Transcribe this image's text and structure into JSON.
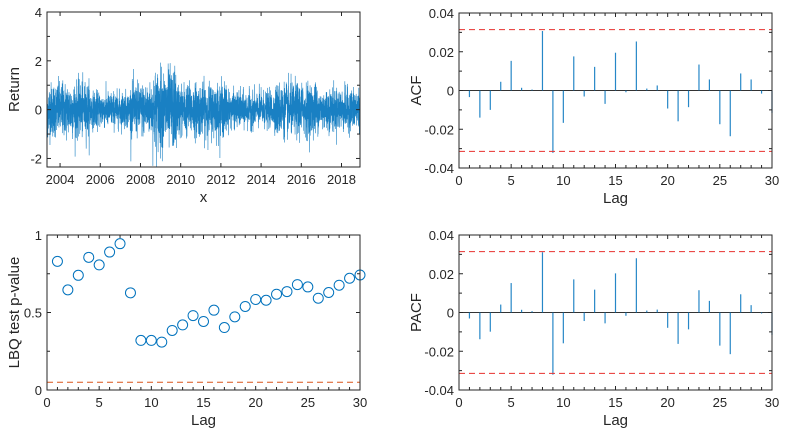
{
  "colors": {
    "series": "#0072BD",
    "bound": "#E8312F",
    "lbq_line": "#D95319",
    "axis": "#262626"
  },
  "chart_data": [
    {
      "id": "returns",
      "type": "line",
      "title": "",
      "xlabel": "x",
      "ylabel": "Return",
      "xlim": [
        2003.35,
        2018.92
      ],
      "ylim": [
        -2.35,
        4
      ],
      "xticks": [
        2004,
        2006,
        2008,
        2010,
        2012,
        2014,
        2016,
        2018
      ],
      "xtick_labels": [
        "2004",
        "2006",
        "2008",
        "2010",
        "2012",
        "2014",
        "2016",
        "2018"
      ],
      "yticks": [
        -2,
        0,
        2,
        4
      ],
      "ytick_labels": [
        "-2",
        "0",
        "2",
        "4"
      ],
      "grid": false
    },
    {
      "id": "acf",
      "type": "stem",
      "xlabel": "Lag",
      "ylabel": "ACF",
      "xlim": [
        0,
        30
      ],
      "ylim": [
        -0.04,
        0.04
      ],
      "xticks": [
        0,
        5,
        10,
        15,
        20,
        25,
        30
      ],
      "xtick_labels": [
        "0",
        "5",
        "10",
        "15",
        "20",
        "25",
        "30"
      ],
      "yticks": [
        -0.04,
        -0.02,
        0,
        0.02,
        0.04
      ],
      "ytick_labels": [
        "-0.04",
        "-0.02",
        "0",
        "0.02",
        "0.04"
      ],
      "lags": [
        1,
        2,
        3,
        4,
        5,
        6,
        7,
        8,
        9,
        10,
        11,
        12,
        13,
        14,
        15,
        16,
        17,
        18,
        19,
        20,
        21,
        22,
        23,
        24,
        25,
        26,
        27,
        28,
        29,
        30
      ],
      "values": [
        -0.0034,
        -0.014,
        -0.01,
        0.0045,
        0.0153,
        0.0014,
        0.0005,
        0.0307,
        -0.0322,
        -0.0167,
        0.0176,
        -0.0031,
        0.0122,
        -0.0069,
        0.0195,
        -0.0009,
        0.0253,
        0.001,
        0.0026,
        -0.0093,
        -0.0159,
        -0.0086,
        0.0134,
        0.0057,
        -0.0174,
        -0.0236,
        0.0088,
        0.0057,
        -0.0016,
        -0.0116
      ],
      "confidence_bound": 0.0314,
      "grid": false
    },
    {
      "id": "lbq",
      "type": "scatter",
      "xlabel": "Lag",
      "ylabel": "LBQ test p-value",
      "xlim": [
        0,
        30
      ],
      "ylim": [
        0,
        1
      ],
      "xticks": [
        0,
        5,
        10,
        15,
        20,
        25,
        30
      ],
      "xtick_labels": [
        "0",
        "5",
        "10",
        "15",
        "20",
        "25",
        "30"
      ],
      "yticks": [
        0,
        0.5,
        1
      ],
      "ytick_labels": [
        "0",
        "0.5",
        "1"
      ],
      "lags": [
        1,
        2,
        3,
        4,
        5,
        6,
        7,
        8,
        9,
        10,
        11,
        12,
        13,
        14,
        15,
        16,
        17,
        18,
        19,
        20,
        21,
        22,
        23,
        24,
        25,
        26,
        27,
        28,
        29,
        30
      ],
      "values": [
        0.83,
        0.646,
        0.74,
        0.856,
        0.807,
        0.89,
        0.944,
        0.627,
        0.32,
        0.32,
        0.309,
        0.384,
        0.42,
        0.48,
        0.442,
        0.515,
        0.403,
        0.472,
        0.539,
        0.584,
        0.579,
        0.618,
        0.635,
        0.68,
        0.665,
        0.592,
        0.629,
        0.676,
        0.721,
        0.742
      ],
      "significance_level": 0.05,
      "grid": false
    },
    {
      "id": "pacf",
      "type": "stem",
      "xlabel": "Lag",
      "ylabel": "PACF",
      "xlim": [
        0,
        30
      ],
      "ylim": [
        -0.04,
        0.04
      ],
      "xticks": [
        0,
        5,
        10,
        15,
        20,
        25,
        30
      ],
      "xtick_labels": [
        "0",
        "5",
        "10",
        "15",
        "20",
        "25",
        "30"
      ],
      "yticks": [
        -0.04,
        -0.02,
        0,
        0.02,
        0.04
      ],
      "ytick_labels": [
        "-0.04",
        "-0.02",
        "0",
        "0.02",
        "0.04"
      ],
      "lags": [
        1,
        2,
        3,
        4,
        5,
        6,
        7,
        8,
        9,
        10,
        11,
        12,
        13,
        14,
        15,
        16,
        17,
        18,
        19,
        20,
        21,
        22,
        23,
        24,
        25,
        26,
        27,
        28,
        29,
        30
      ],
      "values": [
        -0.0031,
        -0.0138,
        -0.0099,
        0.0041,
        0.0152,
        0.0014,
        0.0007,
        0.0311,
        -0.0321,
        -0.0159,
        0.0171,
        -0.0044,
        0.0118,
        -0.0056,
        0.0202,
        -0.0017,
        0.028,
        0.001,
        0.0015,
        -0.0079,
        -0.0162,
        -0.0087,
        0.0115,
        0.006,
        -0.0171,
        -0.0215,
        0.0094,
        0.0038,
        -0.0005,
        -0.0116
      ],
      "confidence_bound": 0.0314,
      "grid": false
    }
  ]
}
